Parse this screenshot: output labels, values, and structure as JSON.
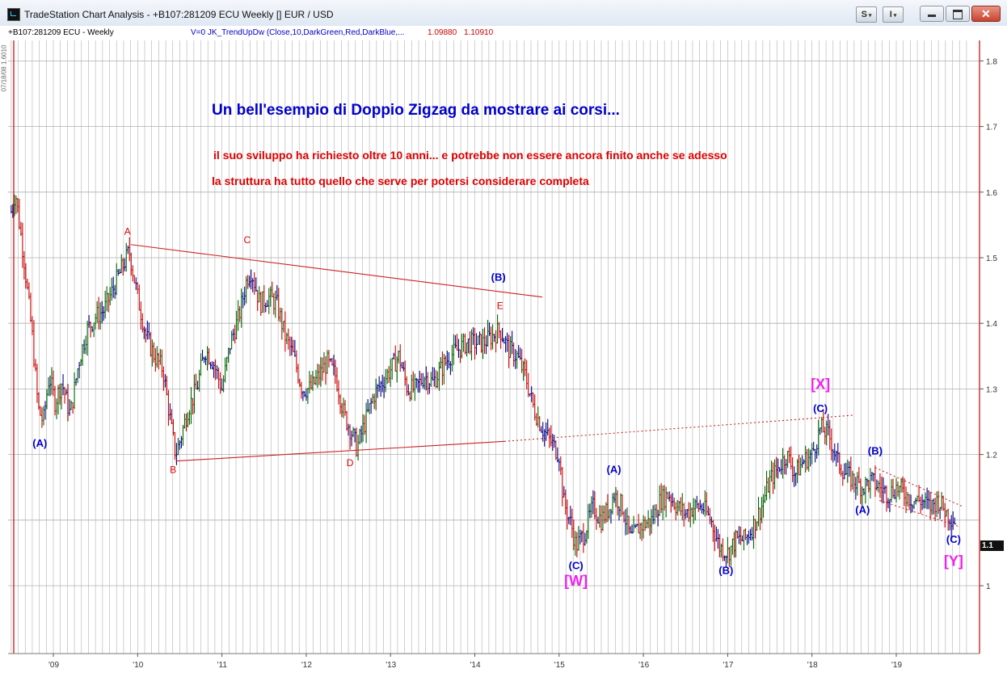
{
  "window": {
    "title": "TradeStation Chart Analysis - +B107:281209 ECU Weekly [] EUR / USD",
    "buttons": [
      "S",
      "I"
    ],
    "controls": [
      "minimize",
      "restore",
      "close"
    ]
  },
  "header": {
    "symbol": "+B107:281209 ECU - Weekly",
    "indicator": "V=0  JK_TrendUpDw  (Close,10,DarkGreen,Red,DarkBlue,...",
    "value1": "1.09880",
    "value2": "1.10910",
    "side_label": "07/18/08 1.6010"
  },
  "colors": {
    "up": "#006400",
    "down": "#cc0000",
    "neutral": "#00008b",
    "blue_text": "#0000cc",
    "red_text": "#dd0000",
    "magenta": "#ee22ee",
    "grid": "#b0b0b0",
    "axis_red": "#cc0000"
  },
  "annotations": {
    "title": "Un bell'esempio di Doppio Zigzag da mostrare ai corsi...",
    "line1": "il suo sviluppo ha richiesto oltre 10 anni...  e potrebbe non essere ancora finito anche se adesso",
    "line2": "la struttura ha tutto quello che serve per potersi considerare completa"
  },
  "current_price_tag": "1.1",
  "chart_data": {
    "type": "bar",
    "subtype": "weekly-ohlc",
    "x_range": [
      2008.45,
      2019.85
    ],
    "ylim": [
      0.9,
      1.85
    ],
    "xtick_labels": [
      {
        "x": 2009,
        "label": "'09"
      },
      {
        "x": 2010,
        "label": "'10"
      },
      {
        "x": 2011,
        "label": "'11"
      },
      {
        "x": 2012,
        "label": "'12"
      },
      {
        "x": 2013,
        "label": "'13"
      },
      {
        "x": 2014,
        "label": "'14"
      },
      {
        "x": 2015,
        "label": "'15"
      },
      {
        "x": 2016,
        "label": "'16"
      },
      {
        "x": 2017,
        "label": "'17"
      },
      {
        "x": 2018,
        "label": "'18"
      },
      {
        "x": 2019,
        "label": "'19"
      }
    ],
    "ytick_labels": [
      "1.8",
      "1.7",
      "1.6",
      "1.5",
      "1.4",
      "1.3",
      "1.2",
      "1",
      "1.1"
    ],
    "yticks": [
      1.8,
      1.7,
      1.6,
      1.5,
      1.4,
      1.3,
      1.2,
      1.0
    ],
    "grid": true,
    "path": [
      [
        2008.5,
        1.57
      ],
      [
        2008.55,
        1.6
      ],
      [
        2008.65,
        1.5
      ],
      [
        2008.75,
        1.38
      ],
      [
        2008.82,
        1.27
      ],
      [
        2008.88,
        1.25
      ],
      [
        2008.95,
        1.32
      ],
      [
        2009.02,
        1.28
      ],
      [
        2009.1,
        1.31
      ],
      [
        2009.2,
        1.26
      ],
      [
        2009.3,
        1.34
      ],
      [
        2009.4,
        1.39
      ],
      [
        2009.5,
        1.41
      ],
      [
        2009.6,
        1.42
      ],
      [
        2009.7,
        1.45
      ],
      [
        2009.8,
        1.48
      ],
      [
        2009.9,
        1.51
      ],
      [
        2010.0,
        1.44
      ],
      [
        2010.1,
        1.38
      ],
      [
        2010.2,
        1.35
      ],
      [
        2010.3,
        1.33
      ],
      [
        2010.4,
        1.24
      ],
      [
        2010.45,
        1.2
      ],
      [
        2010.5,
        1.22
      ],
      [
        2010.6,
        1.27
      ],
      [
        2010.7,
        1.3
      ],
      [
        2010.8,
        1.36
      ],
      [
        2010.9,
        1.34
      ],
      [
        2011.0,
        1.3
      ],
      [
        2011.1,
        1.37
      ],
      [
        2011.2,
        1.41
      ],
      [
        2011.3,
        1.47
      ],
      [
        2011.35,
        1.48
      ],
      [
        2011.45,
        1.43
      ],
      [
        2011.55,
        1.44
      ],
      [
        2011.65,
        1.43
      ],
      [
        2011.75,
        1.38
      ],
      [
        2011.85,
        1.35
      ],
      [
        2011.95,
        1.3
      ],
      [
        2012.05,
        1.3
      ],
      [
        2012.15,
        1.32
      ],
      [
        2012.25,
        1.34
      ],
      [
        2012.35,
        1.32
      ],
      [
        2012.45,
        1.26
      ],
      [
        2012.55,
        1.23
      ],
      [
        2012.6,
        1.21
      ],
      [
        2012.7,
        1.25
      ],
      [
        2012.8,
        1.29
      ],
      [
        2012.9,
        1.31
      ],
      [
        2013.0,
        1.33
      ],
      [
        2013.1,
        1.35
      ],
      [
        2013.2,
        1.3
      ],
      [
        2013.3,
        1.3
      ],
      [
        2013.4,
        1.32
      ],
      [
        2013.5,
        1.31
      ],
      [
        2013.6,
        1.33
      ],
      [
        2013.7,
        1.35
      ],
      [
        2013.8,
        1.36
      ],
      [
        2013.9,
        1.37
      ],
      [
        2014.0,
        1.37
      ],
      [
        2014.1,
        1.37
      ],
      [
        2014.2,
        1.38
      ],
      [
        2014.3,
        1.39
      ],
      [
        2014.4,
        1.36
      ],
      [
        2014.5,
        1.35
      ],
      [
        2014.6,
        1.32
      ],
      [
        2014.7,
        1.27
      ],
      [
        2014.8,
        1.24
      ],
      [
        2014.9,
        1.22
      ],
      [
        2015.0,
        1.2
      ],
      [
        2015.05,
        1.13
      ],
      [
        2015.15,
        1.09
      ],
      [
        2015.2,
        1.06
      ],
      [
        2015.3,
        1.08
      ],
      [
        2015.4,
        1.12
      ],
      [
        2015.5,
        1.1
      ],
      [
        2015.6,
        1.12
      ],
      [
        2015.65,
        1.14
      ],
      [
        2015.75,
        1.12
      ],
      [
        2015.85,
        1.07
      ],
      [
        2015.95,
        1.09
      ],
      [
        2016.1,
        1.1
      ],
      [
        2016.2,
        1.13
      ],
      [
        2016.3,
        1.14
      ],
      [
        2016.4,
        1.12
      ],
      [
        2016.5,
        1.11
      ],
      [
        2016.6,
        1.12
      ],
      [
        2016.7,
        1.12
      ],
      [
        2016.8,
        1.1
      ],
      [
        2016.9,
        1.06
      ],
      [
        2017.0,
        1.05
      ],
      [
        2017.1,
        1.07
      ],
      [
        2017.2,
        1.07
      ],
      [
        2017.3,
        1.09
      ],
      [
        2017.4,
        1.12
      ],
      [
        2017.5,
        1.16
      ],
      [
        2017.6,
        1.18
      ],
      [
        2017.7,
        1.2
      ],
      [
        2017.8,
        1.17
      ],
      [
        2017.9,
        1.19
      ],
      [
        2018.0,
        1.2
      ],
      [
        2018.1,
        1.24
      ],
      [
        2018.2,
        1.23
      ],
      [
        2018.3,
        1.19
      ],
      [
        2018.4,
        1.17
      ],
      [
        2018.5,
        1.16
      ],
      [
        2018.6,
        1.15
      ],
      [
        2018.7,
        1.16
      ],
      [
        2018.8,
        1.15
      ],
      [
        2018.9,
        1.14
      ],
      [
        2019.0,
        1.15
      ],
      [
        2019.1,
        1.14
      ],
      [
        2019.2,
        1.13
      ],
      [
        2019.3,
        1.13
      ],
      [
        2019.4,
        1.12
      ],
      [
        2019.5,
        1.13
      ],
      [
        2019.6,
        1.11
      ],
      [
        2019.7,
        1.1
      ]
    ],
    "trendlines": [
      {
        "from": [
          2009.92,
          1.52
        ],
        "to": [
          2014.8,
          1.44
        ],
        "style": "solid"
      },
      {
        "from": [
          2010.45,
          1.19
        ],
        "to": [
          2014.35,
          1.22
        ],
        "style": "solid"
      },
      {
        "from": [
          2014.35,
          1.22
        ],
        "to": [
          2018.5,
          1.26
        ],
        "style": "dotted"
      },
      {
        "from": [
          2018.75,
          1.18
        ],
        "to": [
          2019.8,
          1.12
        ],
        "style": "dotted"
      },
      {
        "from": [
          2018.8,
          1.13
        ],
        "to": [
          2019.75,
          1.09
        ],
        "style": "dotted"
      }
    ],
    "wave_labels": [
      {
        "text": "A",
        "x": 2009.88,
        "y": 1.535,
        "color": "red"
      },
      {
        "text": "C",
        "x": 2011.3,
        "y": 1.522,
        "color": "red"
      },
      {
        "text": "(B)",
        "x": 2014.28,
        "y": 1.465,
        "color": "blue"
      },
      {
        "text": "E",
        "x": 2014.3,
        "y": 1.422,
        "color": "red"
      },
      {
        "text": "(A)",
        "x": 2008.84,
        "y": 1.212,
        "color": "blue"
      },
      {
        "text": "B",
        "x": 2010.42,
        "y": 1.172,
        "color": "red"
      },
      {
        "text": "D",
        "x": 2012.52,
        "y": 1.182,
        "color": "red"
      },
      {
        "text": "(A)",
        "x": 2015.65,
        "y": 1.172,
        "color": "blue"
      },
      {
        "text": "(C)",
        "x": 2015.2,
        "y": 1.025,
        "color": "blue"
      },
      {
        "text": "[W]",
        "x": 2015.2,
        "y": 1.0,
        "color": "magenta"
      },
      {
        "text": "(B)",
        "x": 2016.98,
        "y": 1.018,
        "color": "blue"
      },
      {
        "text": "[X]",
        "x": 2018.1,
        "y": 1.3,
        "color": "magenta"
      },
      {
        "text": "(C)",
        "x": 2018.1,
        "y": 1.265,
        "color": "blue"
      },
      {
        "text": "(B)",
        "x": 2018.75,
        "y": 1.2,
        "color": "blue"
      },
      {
        "text": "(A)",
        "x": 2018.6,
        "y": 1.11,
        "color": "blue"
      },
      {
        "text": "(C)",
        "x": 2019.68,
        "y": 1.065,
        "color": "blue"
      },
      {
        "text": "[Y]",
        "x": 2019.68,
        "y": 1.03,
        "color": "magenta"
      }
    ]
  }
}
